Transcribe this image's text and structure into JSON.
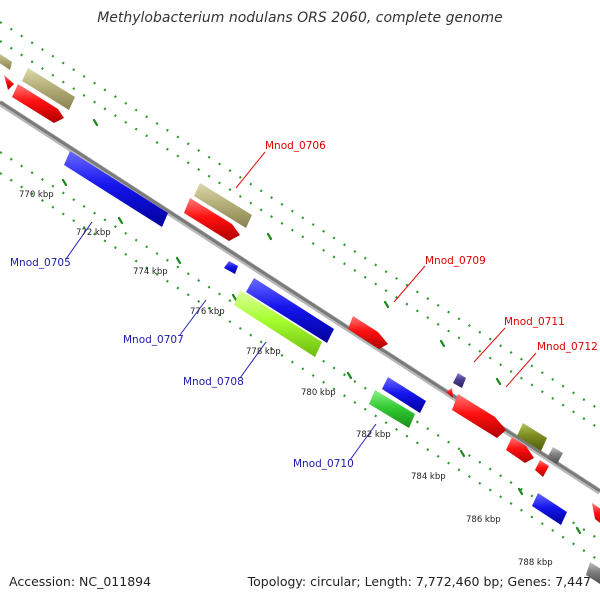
{
  "title": "Methylobacterium nodulans ORS 2060, complete genome",
  "footer": {
    "accession": "Accession: NC_011894",
    "summary": "Topology: circular; Length: 7,772,460 bp; Genes: 7,447"
  },
  "colors": {
    "backbone": "#8f8f8f",
    "red": "#ff1010",
    "blue": "#1515ee",
    "khaki": "#b5b07a",
    "lime": "#a6ff2e",
    "green": "#35cc35",
    "olive": "#7c8c20",
    "gray": "#7e7e7e",
    "purple": "#4b3d8e",
    "tick": "#2a9a2a",
    "label_red": "#dd0000",
    "label_blue": "#1a1aaa"
  },
  "scale": [
    "770 kbp",
    "772 kbp",
    "774 kbp",
    "776 kbp",
    "778 kbp",
    "780 kbp",
    "782 kbp",
    "784 kbp",
    "786 kbp",
    "788 kbp"
  ],
  "gene_labels": {
    "upper": [
      "Mnod_0706",
      "Mnod_0709",
      "Mnod_0711",
      "Mnod_0712"
    ],
    "lower": [
      "Mnod_0705",
      "Mnod_0707",
      "Mnod_0708",
      "Mnod_0710"
    ]
  }
}
